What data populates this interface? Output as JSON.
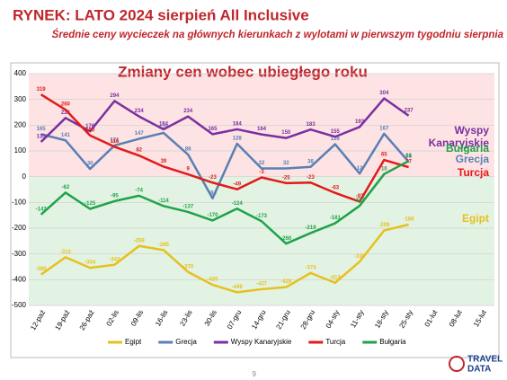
{
  "chart_data": {
    "type": "line",
    "title": "RYNEK: LATO 2024 sierpień All Inclusive",
    "subtitle": "Średnie ceny wycieczek na głównych kierunkach z wylotami w pierwszym tygodniu sierpnia",
    "inner_title": "Zmiany cen wobec ubiegłego roku",
    "categories": [
      "12-paź",
      "19-paź",
      "26-paź",
      "02-lis",
      "09-lis",
      "16-lis",
      "23-lis",
      "30-lis",
      "07-gru",
      "14-gru",
      "21-gru",
      "28-gru",
      "04-sty",
      "11-sty",
      "18-sty",
      "25-sty",
      "01-lut",
      "08-lut",
      "15-lut"
    ],
    "series": [
      {
        "name": "Egipt",
        "color": "#e6c01e",
        "values": [
          -380,
          -313,
          -354,
          -342,
          -269,
          -285,
          -370,
          -420,
          -449,
          -437,
          -429,
          -374,
          -412,
          -330,
          -209,
          -186,
          null,
          null,
          null
        ]
      },
      {
        "name": "Grecja",
        "color": "#5b7fb5",
        "values": [
          165,
          141,
          30,
          121,
          147,
          170,
          86,
          -84,
          128,
          32,
          32,
          38,
          126,
          12,
          167,
          58,
          null,
          null,
          null
        ]
      },
      {
        "name": "Wyspy Kanaryjskie",
        "color": "#7b2fa0",
        "values": [
          135,
          228,
          176,
          294,
          234,
          184,
          234,
          165,
          184,
          164,
          150,
          183,
          155,
          193,
          304,
          237,
          null,
          null,
          null
        ]
      },
      {
        "name": "Turcja",
        "color": "#e21a1a",
        "values": [
          319,
          260,
          160,
          116,
          82,
          39,
          9,
          -23,
          -49,
          -3,
          -25,
          -23,
          -63,
          -97,
          65,
          37,
          null,
          null,
          null
        ]
      },
      {
        "name": "Bułgaria",
        "color": "#1ea34a",
        "values": [
          -147,
          -62,
          -125,
          -95,
          -74,
          -114,
          -137,
          -170,
          -124,
          -173,
          -260,
          -219,
          -181,
          -113,
          10,
          61,
          null,
          null,
          null
        ]
      }
    ],
    "ylim": [
      -500,
      400
    ],
    "yticks": [
      400,
      300,
      200,
      100,
      0,
      -100,
      -200,
      -300,
      -400,
      -500
    ],
    "grid": true,
    "legend": "bottom",
    "page_number": "9",
    "logo": [
      "TRAVEL",
      "DATA"
    ]
  }
}
